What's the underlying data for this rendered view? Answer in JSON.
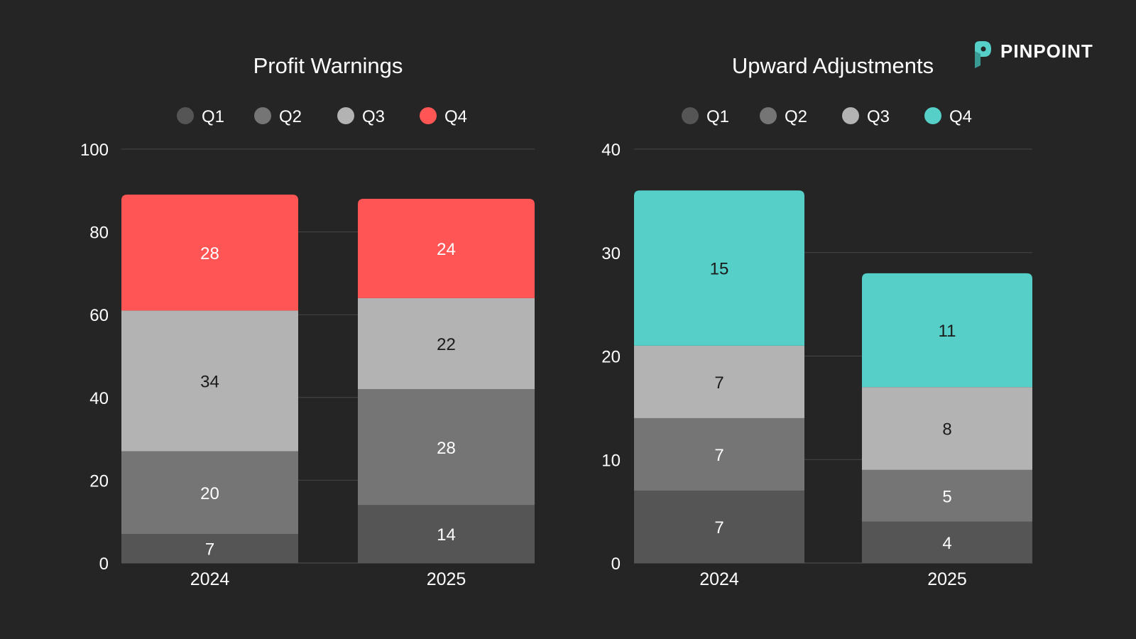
{
  "brand": {
    "name": "PINPOINT",
    "logo_color": "#55cfc7"
  },
  "colors": {
    "background": "#252525",
    "Q1": "#555555",
    "Q2": "#757575",
    "Q3": "#b3b3b3"
  },
  "chart_data": [
    {
      "type": "bar",
      "stacked": true,
      "title": "Profit Warnings",
      "categories": [
        "2024",
        "2025"
      ],
      "series": [
        {
          "name": "Q1",
          "values": [
            7,
            14
          ],
          "color": "#555555"
        },
        {
          "name": "Q2",
          "values": [
            20,
            28
          ],
          "color": "#757575"
        },
        {
          "name": "Q3",
          "values": [
            34,
            22
          ],
          "color": "#b3b3b3"
        },
        {
          "name": "Q4",
          "values": [
            28,
            24
          ],
          "color": "#ff5555"
        }
      ],
      "ylim": [
        0,
        100
      ],
      "yticks": [
        0,
        20,
        40,
        60,
        80,
        100
      ],
      "grid": true,
      "legend": "top"
    },
    {
      "type": "bar",
      "stacked": true,
      "title": "Upward Adjustments",
      "categories": [
        "2024",
        "2025"
      ],
      "series": [
        {
          "name": "Q1",
          "values": [
            7,
            4
          ],
          "color": "#555555"
        },
        {
          "name": "Q2",
          "values": [
            7,
            5
          ],
          "color": "#757575"
        },
        {
          "name": "Q3",
          "values": [
            7,
            8
          ],
          "color": "#b3b3b3"
        },
        {
          "name": "Q4",
          "values": [
            15,
            11
          ],
          "color": "#55cfc7"
        }
      ],
      "ylim": [
        0,
        40
      ],
      "yticks": [
        0,
        10,
        20,
        30,
        40
      ],
      "grid": true,
      "legend": "top"
    }
  ]
}
